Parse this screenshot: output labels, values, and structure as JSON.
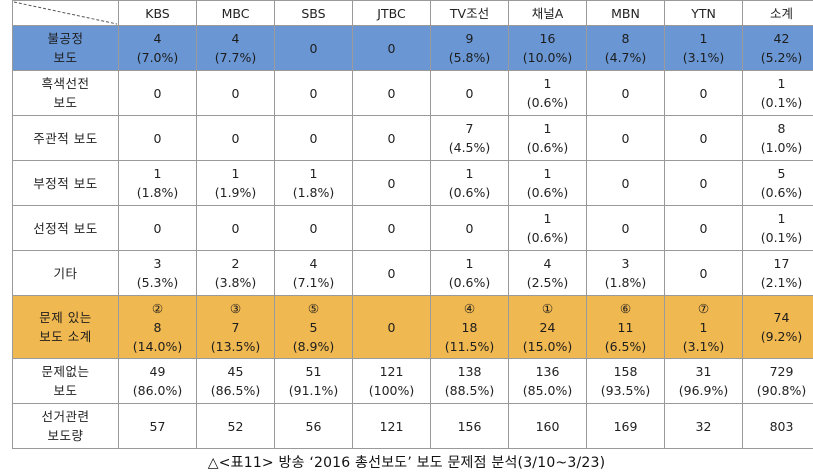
{
  "headers": [
    "KBS",
    "MBC",
    "SBS",
    "JTBC",
    "TV조선",
    "채널A",
    "MBN",
    "YTN",
    "소계"
  ],
  "rows": [
    {
      "label": [
        "불공정",
        "보도"
      ],
      "style": "blue",
      "cells": [
        [
          "4",
          "(7.0%)"
        ],
        [
          "4",
          "(7.7%)"
        ],
        [
          "0"
        ],
        [
          "0"
        ],
        [
          "9",
          "(5.8%)"
        ],
        [
          "16",
          "(10.0%)"
        ],
        [
          "8",
          "(4.7%)"
        ],
        [
          "1",
          "(3.1%)"
        ],
        [
          "42",
          "(5.2%)"
        ]
      ]
    },
    {
      "label": [
        "흑색선전",
        "보도"
      ],
      "style": "",
      "cells": [
        [
          "0"
        ],
        [
          "0"
        ],
        [
          "0"
        ],
        [
          "0"
        ],
        [
          "0"
        ],
        [
          "1",
          "(0.6%)"
        ],
        [
          "0"
        ],
        [
          "0"
        ],
        [
          "1",
          "(0.1%)"
        ]
      ]
    },
    {
      "label": [
        "주관적 보도"
      ],
      "style": "",
      "cells": [
        [
          "0"
        ],
        [
          "0"
        ],
        [
          "0"
        ],
        [
          "0"
        ],
        [
          "7",
          "(4.5%)"
        ],
        [
          "1",
          "(0.6%)"
        ],
        [
          "0"
        ],
        [
          "0"
        ],
        [
          "8",
          "(1.0%)"
        ]
      ]
    },
    {
      "label": [
        "부정적 보도"
      ],
      "style": "",
      "cells": [
        [
          "1",
          "(1.8%)"
        ],
        [
          "1",
          "(1.9%)"
        ],
        [
          "1",
          "(1.8%)"
        ],
        [
          "0"
        ],
        [
          "1",
          "(0.6%)"
        ],
        [
          "1",
          "(0.6%)"
        ],
        [
          "0"
        ],
        [
          "0"
        ],
        [
          "5",
          "(0.6%)"
        ]
      ]
    },
    {
      "label": [
        "선정적 보도"
      ],
      "style": "",
      "cells": [
        [
          "0"
        ],
        [
          "0"
        ],
        [
          "0"
        ],
        [
          "0"
        ],
        [
          "0"
        ],
        [
          "1",
          "(0.6%)"
        ],
        [
          "0"
        ],
        [
          "0"
        ],
        [
          "1",
          "(0.1%)"
        ]
      ]
    },
    {
      "label": [
        "기타"
      ],
      "style": "",
      "cells": [
        [
          "3",
          "(5.3%)"
        ],
        [
          "2",
          "(3.8%)"
        ],
        [
          "4",
          "(7.1%)"
        ],
        [
          "0"
        ],
        [
          "1",
          "(0.6%)"
        ],
        [
          "4",
          "(2.5%)"
        ],
        [
          "3",
          "(1.8%)"
        ],
        [
          "0"
        ],
        [
          "17",
          "(2.1%)"
        ]
      ]
    },
    {
      "label": [
        "문제 있는",
        "보도 소계"
      ],
      "style": "gold",
      "cells": [
        [
          "②",
          "8",
          "(14.0%)"
        ],
        [
          "③",
          "7",
          "(13.5%)"
        ],
        [
          "⑤",
          "5",
          "(8.9%)"
        ],
        [
          "0"
        ],
        [
          "④",
          "18",
          "(11.5%)"
        ],
        [
          "①",
          "24",
          "(15.0%)"
        ],
        [
          "⑥",
          "11",
          "(6.5%)"
        ],
        [
          "⑦",
          "1",
          "(3.1%)"
        ],
        [
          "74",
          "(9.2%)"
        ]
      ]
    },
    {
      "label": [
        "문제없는",
        "보도"
      ],
      "style": "",
      "cells": [
        [
          "49",
          "(86.0%)"
        ],
        [
          "45",
          "(86.5%)"
        ],
        [
          "51",
          "(91.1%)"
        ],
        [
          "121",
          "(100%)"
        ],
        [
          "138",
          "(88.5%)"
        ],
        [
          "136",
          "(85.0%)"
        ],
        [
          "158",
          "(93.5%)"
        ],
        [
          "31",
          "(96.9%)"
        ],
        [
          "729",
          "(90.8%)"
        ]
      ]
    },
    {
      "label": [
        "선거관련",
        "보도량"
      ],
      "style": "",
      "cells": [
        [
          "57"
        ],
        [
          "52"
        ],
        [
          "56"
        ],
        [
          "121"
        ],
        [
          "156"
        ],
        [
          "160"
        ],
        [
          "169"
        ],
        [
          "32"
        ],
        [
          "803"
        ]
      ]
    }
  ],
  "caption": "△<표11> 방송 ‘2016 총선보도’ 보도 문제점 분석(3/10~3/23)"
}
